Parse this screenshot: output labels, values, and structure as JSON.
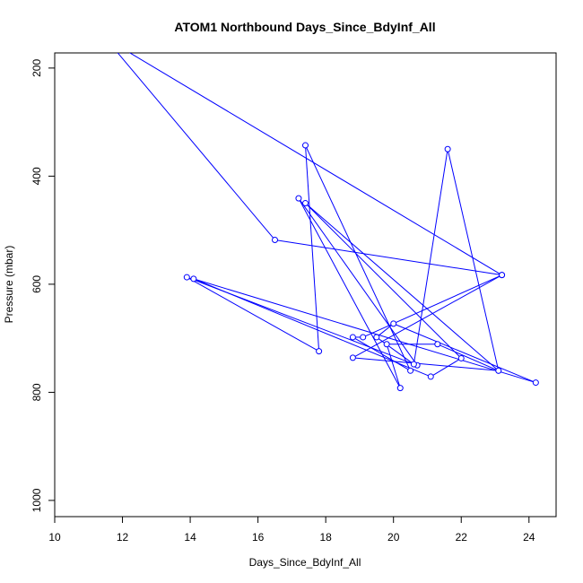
{
  "chart_data": {
    "type": "line",
    "title": "ATOM1 Northbound Days_Since_BdyInf_All",
    "xlabel": "Days_Since_BdyInf_All",
    "ylabel": "Pressure (mbar)",
    "xlim": [
      10,
      24.8
    ],
    "ylim": [
      1030,
      172
    ],
    "y_inverted": true,
    "x_ticks": [
      10,
      12,
      14,
      16,
      18,
      20,
      22,
      24
    ],
    "y_ticks": [
      200,
      400,
      600,
      800,
      1000
    ],
    "grid": false,
    "legend": "none",
    "series": [
      {
        "color": "#0000ff",
        "marker": "open-circle",
        "points": [
          {
            "x": 11.5,
            "y": 145,
            "marker": false
          },
          {
            "x": 16.5,
            "y": 518
          },
          {
            "x": 23.2,
            "y": 583
          },
          {
            "x": 19.1,
            "y": 698
          },
          {
            "x": 18.8,
            "y": 698
          },
          {
            "x": 20.5,
            "y": 760
          },
          {
            "x": 17.4,
            "y": 343
          },
          {
            "x": 17.8,
            "y": 724
          },
          {
            "x": 13.9,
            "y": 587
          },
          {
            "x": 20.7,
            "y": 750
          },
          {
            "x": 17.2,
            "y": 441
          },
          {
            "x": 20.2,
            "y": 792
          },
          {
            "x": 19.8,
            "y": 711
          },
          {
            "x": 21.3,
            "y": 711
          },
          {
            "x": 23.1,
            "y": 760
          },
          {
            "x": 21.6,
            "y": 350
          },
          {
            "x": 20.6,
            "y": 748
          },
          {
            "x": 19.5,
            "y": 698
          },
          {
            "x": 20.0,
            "y": 673
          },
          {
            "x": 24.2,
            "y": 782
          },
          {
            "x": 14.1,
            "y": 590
          },
          {
            "x": 21.1,
            "y": 771
          },
          {
            "x": 22.0,
            "y": 737
          },
          {
            "x": 17.4,
            "y": 450
          },
          {
            "x": 23.1,
            "y": 760
          },
          {
            "x": 18.8,
            "y": 736
          },
          {
            "x": 23.2,
            "y": 583
          },
          {
            "x": 11.5,
            "y": 145,
            "marker": false
          }
        ]
      }
    ]
  }
}
